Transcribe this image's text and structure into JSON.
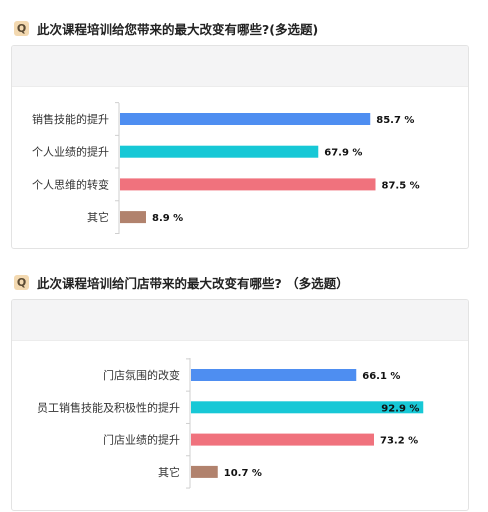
{
  "chart_data": [
    {
      "type": "bar",
      "orientation": "horizontal",
      "title": "此次课程培训给您带来的最大改变有哪些?(多选题)",
      "categories": [
        "销售技能的提升",
        "个人业绩的提升",
        "个人思维的转变",
        "其它"
      ],
      "values": [
        85.7,
        67.9,
        87.5,
        8.9
      ],
      "value_labels": [
        "85.7 %",
        "67.9 %",
        "87.5 %",
        "8.9 %"
      ],
      "colors": [
        "#4e8ef1",
        "#17c8d6",
        "#f0727d",
        "#b1826d"
      ],
      "xlim": [
        0,
        100
      ]
    },
    {
      "type": "bar",
      "orientation": "horizontal",
      "title": "此次课程培训给门店带来的最大改变有哪些? （多选题）",
      "categories": [
        "门店氛围的改变",
        "员工销售技能及积极性的提升",
        "门店业绩的提升",
        "其它"
      ],
      "values": [
        66.1,
        92.9,
        73.2,
        10.7
      ],
      "value_labels": [
        "66.1 %",
        "92.9 %",
        "73.2 %",
        "10.7 %"
      ],
      "colors": [
        "#4e8ef1",
        "#17c8d6",
        "#f0727d",
        "#b1826d"
      ],
      "xlim": [
        0,
        100
      ]
    }
  ],
  "badge": "Q"
}
